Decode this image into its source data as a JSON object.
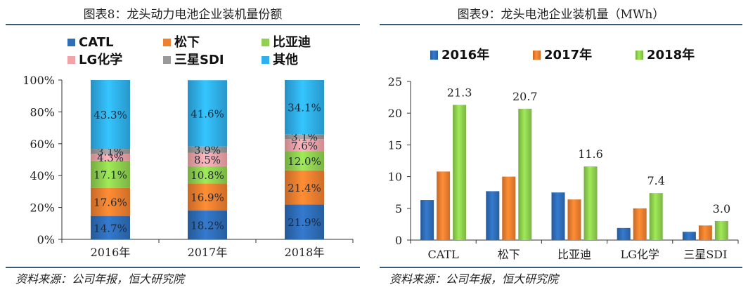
{
  "colors": {
    "catl": "#2e6db8",
    "panasonic": "#f07f2f",
    "byd": "#8fd14f",
    "lg": "#f2a3a8",
    "samsung": "#9a9a9a",
    "others": "#2fb0ec",
    "y2016": "#2e6db8",
    "y2017": "#f07f2f",
    "y2018": "#8fd14f"
  },
  "left": {
    "title": "图表8：龙头动力电池企业装机量份额",
    "source": "资料来源：公司年报，恒大研究院"
  },
  "right": {
    "title": "图表9：龙头电池企业装机量（MWh）",
    "source": "资料来源：公司年报，恒大研究院"
  },
  "chart_data": [
    {
      "type": "bar",
      "stacked": true,
      "title": "图表8：龙头动力电池企业装机量份额",
      "categories": [
        "2016年",
        "2017年",
        "2018年"
      ],
      "ylim": [
        0,
        100
      ],
      "y_ticks": [
        "0%",
        "20%",
        "40%",
        "60%",
        "80%",
        "100%"
      ],
      "legend_position": "top",
      "series": [
        {
          "name": "CATL",
          "color": "#2e6db8",
          "values": [
            14.7,
            18.2,
            21.9
          ],
          "labels": [
            "14.7%",
            "18.2%",
            "21.9%"
          ]
        },
        {
          "name": "松下",
          "color": "#f07f2f",
          "values": [
            17.6,
            16.9,
            21.4
          ],
          "labels": [
            "17.6%",
            "16.9%",
            "21.4%"
          ]
        },
        {
          "name": "比亚迪",
          "color": "#8fd14f",
          "values": [
            17.1,
            10.8,
            12.0
          ],
          "labels": [
            "17.1%",
            "10.8%",
            "12.0%"
          ]
        },
        {
          "name": "LG化学",
          "color": "#f2a3a8",
          "values": [
            4.3,
            8.5,
            7.6
          ],
          "labels": [
            "4.3%",
            "8.5%",
            "7.6%"
          ]
        },
        {
          "name": "三星SDI",
          "color": "#9a9a9a",
          "values": [
            3.1,
            3.9,
            3.1
          ],
          "labels": [
            "3.1%",
            "3.9%",
            "3.1%"
          ]
        },
        {
          "name": "其他",
          "color": "#2fb0ec",
          "values": [
            43.3,
            41.6,
            34.1
          ],
          "labels": [
            "43.3%",
            "41.6%",
            "34.1%"
          ]
        }
      ]
    },
    {
      "type": "bar",
      "stacked": false,
      "title": "图表9：龙头电池企业装机量（MWh）",
      "categories": [
        "CATL",
        "松下",
        "比亚迪",
        "LG化学",
        "三星SDI"
      ],
      "ylim": [
        0,
        25
      ],
      "y_ticks": [
        "0",
        "5",
        "10",
        "15",
        "20",
        "25"
      ],
      "legend_position": "top",
      "series": [
        {
          "name": "2016年",
          "color": "#2e6db8",
          "values": [
            6.3,
            7.7,
            7.5,
            1.9,
            1.3
          ]
        },
        {
          "name": "2017年",
          "color": "#f07f2f",
          "values": [
            10.8,
            10.0,
            6.4,
            5.0,
            2.3
          ]
        },
        {
          "name": "2018年",
          "color": "#8fd14f",
          "values": [
            21.3,
            20.7,
            11.6,
            7.4,
            3.0
          ],
          "labels": [
            "21.3",
            "20.7",
            "11.6",
            "7.4",
            "3.0"
          ]
        }
      ]
    }
  ]
}
